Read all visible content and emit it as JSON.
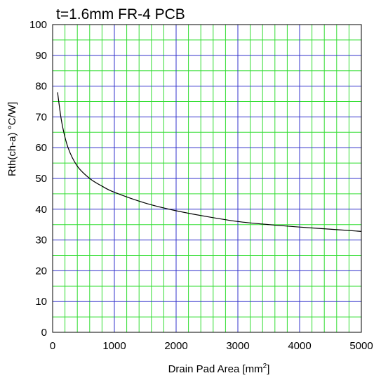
{
  "chart_data": {
    "type": "line",
    "title": "t=1.6mm FR-4 PCB",
    "xlabel_main": "Drain Pad Area [mm",
    "xlabel_sup": "2",
    "xlabel_tail": "]",
    "ylabel": "Rth(ch-a) °C/W]",
    "xlim": [
      0,
      5000
    ],
    "ylim": [
      0,
      100
    ],
    "x_ticks": [
      0,
      1000,
      2000,
      3000,
      4000,
      5000
    ],
    "y_ticks": [
      0,
      10,
      20,
      30,
      40,
      50,
      60,
      70,
      80,
      90,
      100
    ],
    "x_tick_labels": [
      "0",
      "1000",
      "2000",
      "3000",
      "4000",
      "5000"
    ],
    "y_tick_labels": [
      "0",
      "10",
      "20",
      "30",
      "40",
      "50",
      "60",
      "70",
      "80",
      "90",
      "100"
    ],
    "grid": true,
    "colors": {
      "major_grid": "#3333cc",
      "minor_grid": "#33dd33",
      "curve": "#000000",
      "frame": "#000000"
    },
    "series": [
      {
        "x": [
          80,
          150,
          250,
          400,
          600,
          800,
          1000,
          1500,
          2000,
          2500,
          3000,
          3500,
          4000,
          4500,
          5000
        ],
        "y": [
          78,
          68,
          60,
          54,
          50,
          47.5,
          45.5,
          42,
          39.5,
          37.6,
          36,
          35,
          34.2,
          33.5,
          32.8
        ]
      }
    ]
  }
}
